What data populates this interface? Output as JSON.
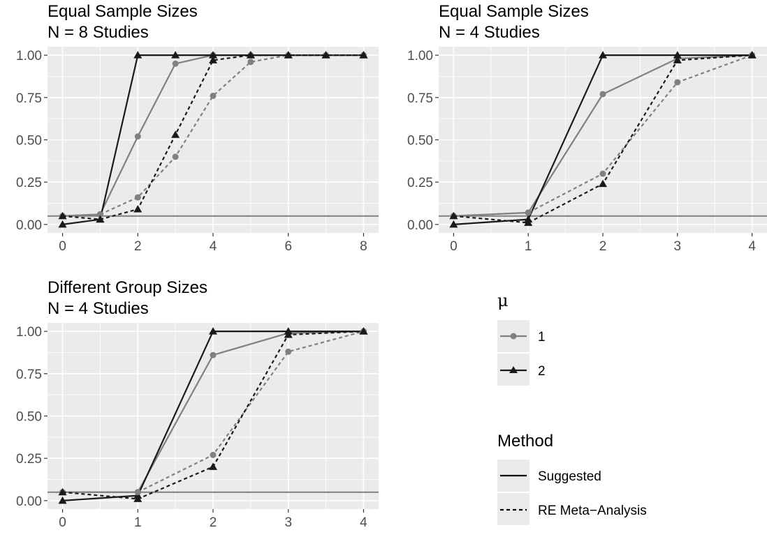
{
  "chart_data": [
    {
      "type": "line",
      "title": "Equal Sample Sizes\nN = 8 Studies",
      "xlabel": "",
      "ylabel": "",
      "xlim": [
        -0.4,
        8.4
      ],
      "ylim": [
        -0.05,
        1.05
      ],
      "x_ticks": [
        "0",
        "2",
        "4",
        "6",
        "8"
      ],
      "y_ticks": [
        "0.00",
        "0.25",
        "0.50",
        "0.75",
        "1.00"
      ],
      "x_tick_values": [
        0,
        2,
        4,
        6,
        8
      ],
      "y_tick_values": [
        0,
        0.25,
        0.5,
        0.75,
        1.0
      ],
      "reference_line_y": 0.05,
      "grid": true,
      "series": [
        {
          "mu": "1",
          "method": "Suggested",
          "x": [
            0,
            1,
            2,
            3,
            4,
            5,
            6,
            7,
            8
          ],
          "values": [
            0.05,
            0.06,
            0.52,
            0.95,
            1.0,
            1.0,
            1.0,
            1.0,
            1.0
          ]
        },
        {
          "mu": "2",
          "method": "Suggested",
          "x": [
            0,
            1,
            2,
            3,
            4,
            5,
            6,
            7,
            8
          ],
          "values": [
            0.0,
            0.03,
            1.0,
            1.0,
            1.0,
            1.0,
            1.0,
            1.0,
            1.0
          ]
        },
        {
          "mu": "1",
          "method": "RE Meta-Analysis",
          "x": [
            0,
            1,
            2,
            3,
            4,
            5,
            6,
            7,
            8
          ],
          "values": [
            0.05,
            0.06,
            0.16,
            0.4,
            0.76,
            0.96,
            1.0,
            1.0,
            1.0
          ]
        },
        {
          "mu": "2",
          "method": "RE Meta-Analysis",
          "x": [
            0,
            1,
            2,
            3,
            4,
            5,
            6,
            7,
            8
          ],
          "values": [
            0.05,
            0.03,
            0.09,
            0.53,
            0.97,
            1.0,
            1.0,
            1.0,
            1.0
          ]
        }
      ]
    },
    {
      "type": "line",
      "title": "Equal Sample Sizes\nN = 4 Studies",
      "xlabel": "",
      "ylabel": "",
      "xlim": [
        -0.2,
        4.2
      ],
      "ylim": [
        -0.05,
        1.05
      ],
      "x_ticks": [
        "0",
        "1",
        "2",
        "3",
        "4"
      ],
      "y_ticks": [
        "0.00",
        "0.25",
        "0.50",
        "0.75",
        "1.00"
      ],
      "x_tick_values": [
        0,
        1,
        2,
        3,
        4
      ],
      "y_tick_values": [
        0,
        0.25,
        0.5,
        0.75,
        1.0
      ],
      "reference_line_y": 0.05,
      "grid": true,
      "series": [
        {
          "mu": "1",
          "method": "Suggested",
          "x": [
            0,
            1,
            2,
            3,
            4
          ],
          "values": [
            0.05,
            0.07,
            0.77,
            0.98,
            1.0
          ]
        },
        {
          "mu": "2",
          "method": "Suggested",
          "x": [
            0,
            1,
            2,
            3,
            4
          ],
          "values": [
            0.0,
            0.03,
            1.0,
            1.0,
            1.0
          ]
        },
        {
          "mu": "1",
          "method": "RE Meta-Analysis",
          "x": [
            0,
            1,
            2,
            3,
            4
          ],
          "values": [
            0.05,
            0.07,
            0.3,
            0.84,
            1.0
          ]
        },
        {
          "mu": "2",
          "method": "RE Meta-Analysis",
          "x": [
            0,
            1,
            2,
            3,
            4
          ],
          "values": [
            0.05,
            0.01,
            0.24,
            0.97,
            1.0
          ]
        }
      ]
    },
    {
      "type": "line",
      "title": "Different Group Sizes\nN = 4 Studies",
      "xlabel": "",
      "ylabel": "",
      "xlim": [
        -0.2,
        4.2
      ],
      "ylim": [
        -0.05,
        1.05
      ],
      "x_ticks": [
        "0",
        "1",
        "2",
        "3",
        "4"
      ],
      "y_ticks": [
        "0.00",
        "0.25",
        "0.50",
        "0.75",
        "1.00"
      ],
      "x_tick_values": [
        0,
        1,
        2,
        3,
        4
      ],
      "y_tick_values": [
        0,
        0.25,
        0.5,
        0.75,
        1.0
      ],
      "reference_line_y": 0.05,
      "grid": true,
      "series": [
        {
          "mu": "1",
          "method": "Suggested",
          "x": [
            0,
            1,
            2,
            3,
            4
          ],
          "values": [
            0.05,
            0.05,
            0.86,
            0.99,
            1.0
          ]
        },
        {
          "mu": "2",
          "method": "Suggested",
          "x": [
            0,
            1,
            2,
            3,
            4
          ],
          "values": [
            0.0,
            0.03,
            1.0,
            1.0,
            1.0
          ]
        },
        {
          "mu": "1",
          "method": "RE Meta-Analysis",
          "x": [
            0,
            1,
            2,
            3,
            4
          ],
          "values": [
            0.05,
            0.05,
            0.27,
            0.88,
            1.0
          ]
        },
        {
          "mu": "2",
          "method": "RE Meta-Analysis",
          "x": [
            0,
            1,
            2,
            3,
            4
          ],
          "values": [
            0.05,
            0.01,
            0.2,
            0.98,
            1.0
          ]
        }
      ]
    }
  ],
  "legend": {
    "mu_title": "μ",
    "mu_items": [
      {
        "label": "1",
        "color": "#808080",
        "shape": "circle"
      },
      {
        "label": "2",
        "color": "#1a1a1a",
        "shape": "triangle"
      }
    ],
    "method_title": "Method",
    "method_items": [
      {
        "label": "Suggested",
        "linetype": "solid"
      },
      {
        "label": "RE Meta−Analysis",
        "linetype": "dashed"
      }
    ]
  },
  "colors": {
    "panel_bg": "#ebebeb",
    "grid": "#ffffff",
    "mu1": "#808080",
    "mu2": "#1a1a1a",
    "reference_line": "#808080"
  }
}
